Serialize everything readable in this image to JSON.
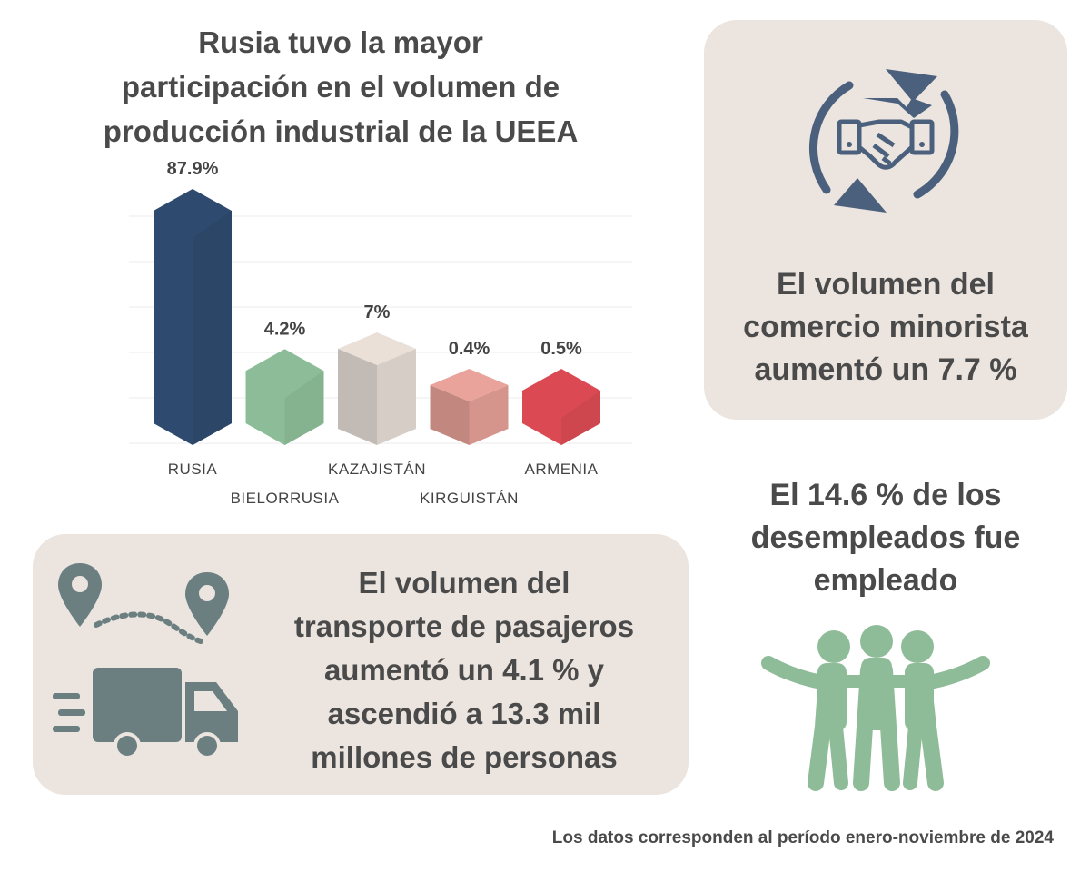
{
  "colors": {
    "text": "#4a4a4a",
    "card_bg": "#ebe4df",
    "icon_blue": "#4b607c",
    "icon_slate": "#6b7e80",
    "icon_green": "#8fbc98"
  },
  "chart_data": {
    "type": "bar",
    "title": "Rusia tuvo la mayor participación en el volumen de producción industrial de la UEEA",
    "title_lines": [
      "Rusia tuvo la mayor",
      "participación en el volumen de",
      "producción industrial de la UEEA"
    ],
    "categories": [
      "RUSIA",
      "BIELORRUSIA",
      "KAZAJISTÁN",
      "KIRGUISTÁN",
      "ARMENIA"
    ],
    "values": [
      87.9,
      4.2,
      7,
      0.4,
      0.5
    ],
    "value_labels": [
      "87.9%",
      "4.2%",
      "7%",
      "0.4%",
      "0.5%"
    ],
    "bar_colors": [
      "#2e4a6e",
      "#8dbd98",
      "#ddd3cc",
      "#dc9a91",
      "#db4a53"
    ],
    "grid": true,
    "xlabel": "",
    "ylabel": ""
  },
  "retail_card": {
    "icon": "handshake-cycle-icon",
    "lines": [
      "El volumen del",
      "comercio minorista",
      "aumentó un 7.7 %"
    ]
  },
  "transport_card": {
    "icons": [
      "map-pin-icon",
      "route-dots-icon",
      "truck-icon"
    ],
    "lines": [
      "El volumen del",
      "transporte de pasajeros",
      "aumentó un 4.1 % y",
      "ascendió a 13.3 mil",
      "millones de personas"
    ]
  },
  "unemployment": {
    "icon": "people-group-icon",
    "lines": [
      "El 14.6 % de los",
      "desempleados fue",
      "empleado"
    ]
  },
  "footnote": "Los datos corresponden al período enero-noviembre de 2024"
}
